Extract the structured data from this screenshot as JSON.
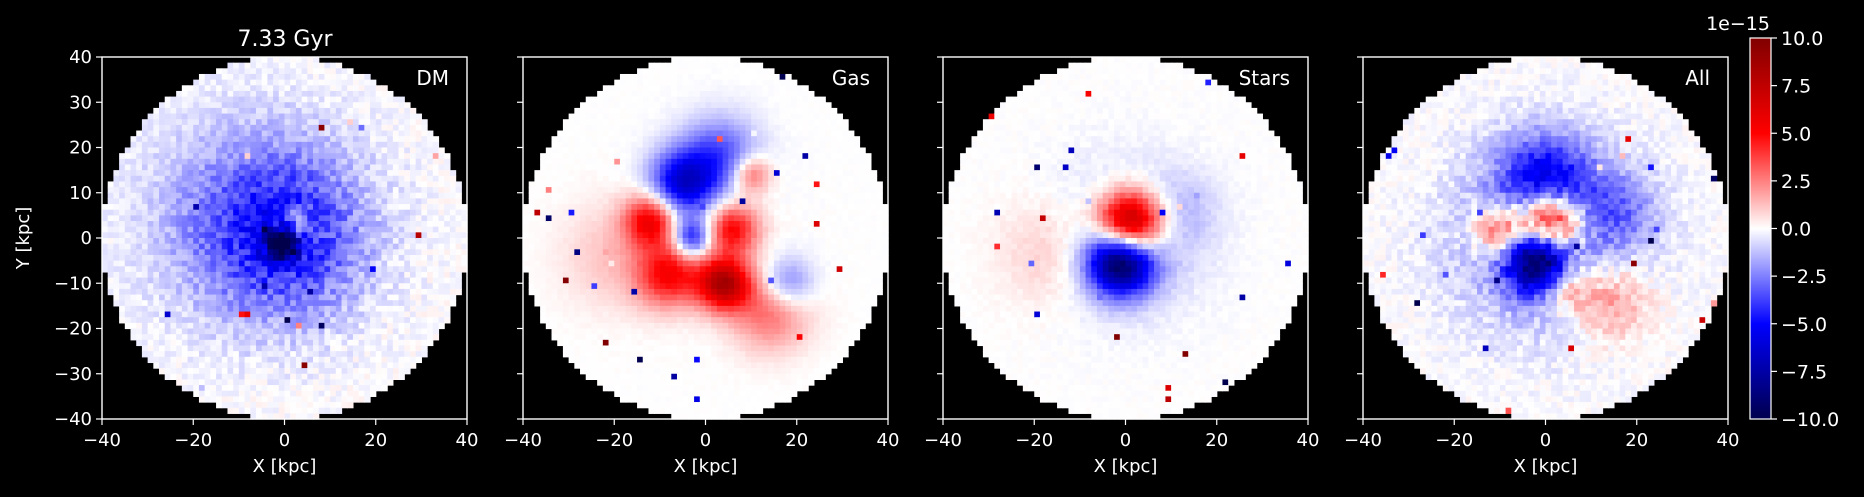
{
  "figure": {
    "title": "7.33 Gyr"
  },
  "chart_data": [
    {
      "type": "heatmap",
      "label": "DM",
      "title": "7.33 Gyr",
      "xlabel": "X [kpc]",
      "ylabel": "Y [kpc]",
      "xlim": [
        -40,
        40
      ],
      "ylim": [
        -40,
        40
      ],
      "xticks": [
        -40,
        -20,
        0,
        20,
        40
      ],
      "yticks": [
        -40,
        -30,
        -20,
        -10,
        0,
        10,
        20,
        30,
        40
      ],
      "mask": "circle",
      "mask_radius": 40,
      "features": [
        {
          "x": 0,
          "y": 0,
          "r": 12,
          "amp": -0.35
        },
        {
          "x": -8,
          "y": 5,
          "r": 16,
          "amp": -0.2
        },
        {
          "x": 2,
          "y": 2,
          "r": 3,
          "amp": 0.4
        },
        {
          "x": 0,
          "y": -1,
          "r": 2.5,
          "amp": -0.9
        }
      ],
      "noise": 0.35
    },
    {
      "type": "heatmap",
      "label": "Gas",
      "xlabel": "X [kpc]",
      "ylabel": "",
      "xlim": [
        -40,
        40
      ],
      "ylim": [
        -40,
        40
      ],
      "xticks": [
        -40,
        -20,
        0,
        20,
        40
      ],
      "yticks": [],
      "mask": "circle",
      "mask_radius": 40,
      "features": [
        {
          "x": -5,
          "y": 12,
          "r": 5,
          "amp": -0.6
        },
        {
          "x": 3,
          "y": 18,
          "r": 6,
          "amp": -0.35
        },
        {
          "x": 10,
          "y": 14,
          "r": 3,
          "amp": 0.35
        },
        {
          "x": -12,
          "y": 4,
          "r": 4,
          "amp": 0.55
        },
        {
          "x": -8,
          "y": -8,
          "r": 5,
          "amp": 0.5
        },
        {
          "x": 4,
          "y": -10,
          "r": 4,
          "amp": 0.8
        },
        {
          "x": 6,
          "y": 2,
          "r": 4,
          "amp": 0.5
        },
        {
          "x": -3,
          "y": 0,
          "r": 3,
          "amp": -0.5
        },
        {
          "x": 14,
          "y": -16,
          "r": 6,
          "amp": 0.3
        },
        {
          "x": 18,
          "y": -10,
          "r": 4,
          "amp": -0.3
        },
        {
          "x": -20,
          "y": -4,
          "r": 8,
          "amp": 0.12
        }
      ],
      "noise": 0.05
    },
    {
      "type": "heatmap",
      "label": "Stars",
      "xlabel": "X [kpc]",
      "ylabel": "",
      "xlim": [
        -40,
        40
      ],
      "ylim": [
        -40,
        40
      ],
      "xticks": [
        -40,
        -20,
        0,
        20,
        40
      ],
      "yticks": [],
      "mask": "circle",
      "mask_radius": 40,
      "features": [
        {
          "x": 1,
          "y": 3,
          "r": 5,
          "amp": 1.0
        },
        {
          "x": -1,
          "y": -5,
          "r": 5,
          "amp": -1.0
        },
        {
          "x": 0,
          "y": 0,
          "r": 11,
          "amp": -0.15
        },
        {
          "x": -16,
          "y": -3,
          "r": 8,
          "amp": 0.12
        },
        {
          "x": 12,
          "y": 6,
          "r": 6,
          "amp": -0.1
        }
      ],
      "noise": 0.08
    },
    {
      "type": "heatmap",
      "label": "All",
      "xlabel": "X [kpc]",
      "ylabel": "",
      "xlim": [
        -40,
        40
      ],
      "ylim": [
        -40,
        40
      ],
      "xticks": [
        -40,
        -20,
        0,
        20,
        40
      ],
      "yticks": [],
      "mask": "circle",
      "mask_radius": 40,
      "features": [
        {
          "x": 1,
          "y": 3,
          "r": 5,
          "amp": 1.0
        },
        {
          "x": -1,
          "y": -5,
          "r": 5,
          "amp": -1.0
        },
        {
          "x": 0,
          "y": 12,
          "r": 7,
          "amp": -0.5
        },
        {
          "x": -10,
          "y": 2,
          "r": 4,
          "amp": 0.45
        },
        {
          "x": 4,
          "y": -10,
          "r": 4,
          "amp": 0.4
        },
        {
          "x": 0,
          "y": 0,
          "r": 14,
          "amp": -0.25
        },
        {
          "x": 14,
          "y": -14,
          "r": 6,
          "amp": 0.25
        },
        {
          "x": 16,
          "y": 6,
          "r": 6,
          "amp": -0.2
        }
      ],
      "noise": 0.3
    }
  ],
  "colorbar": {
    "cmap": "seismic",
    "range": [
      -10.0,
      10.0
    ],
    "ticks": [
      "10.0",
      "7.5",
      "5.0",
      "2.5",
      "0.0",
      "−2.5",
      "−5.0",
      "−7.5",
      "−10.0"
    ],
    "offset_label": "1e−15"
  }
}
